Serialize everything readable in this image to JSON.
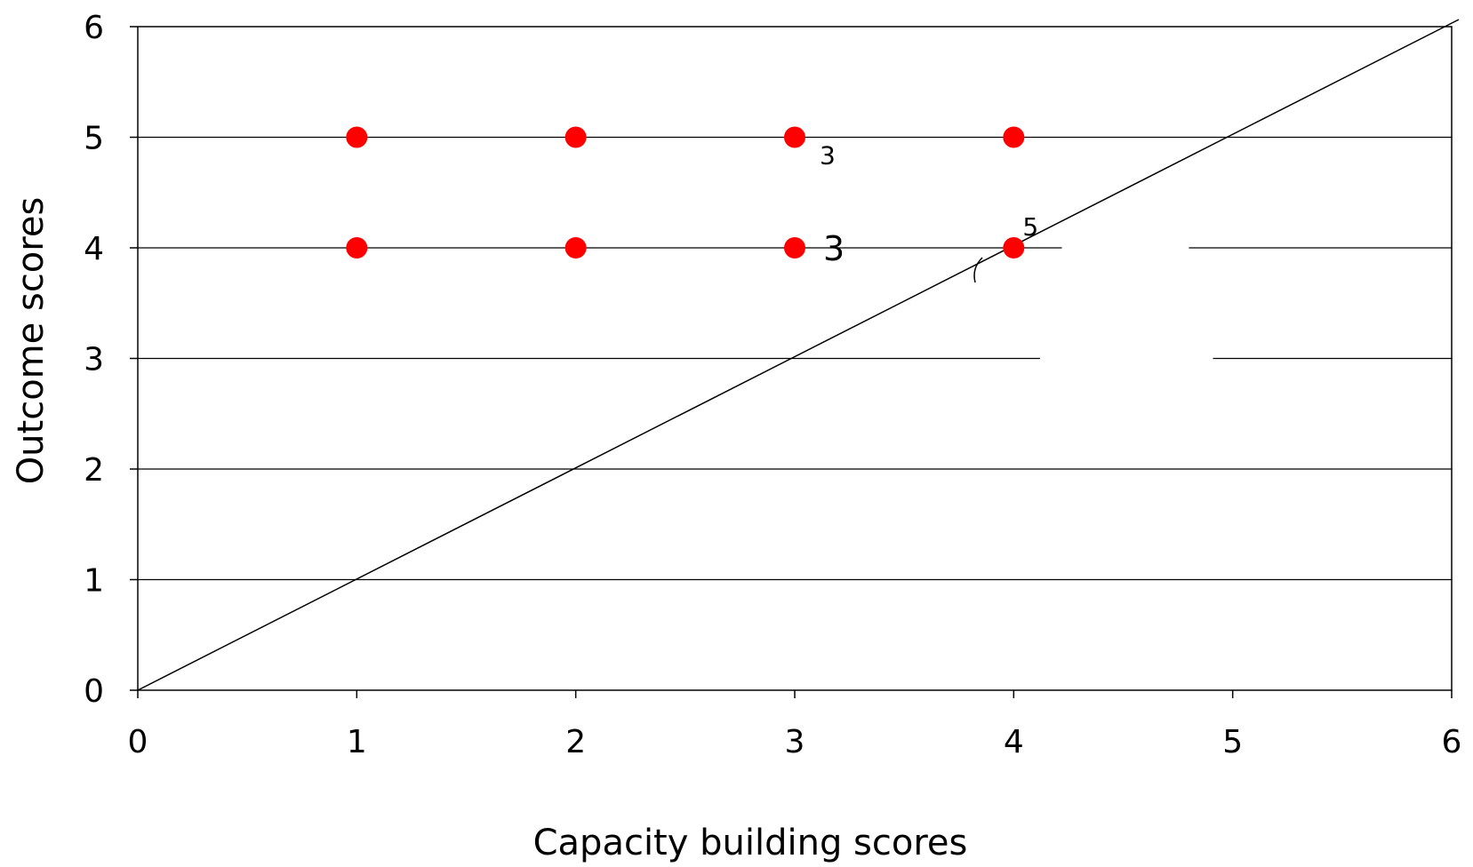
{
  "chart_data": {
    "type": "scatter",
    "title": "",
    "xlabel": "Capacity building scores",
    "ylabel": "Outcome scores",
    "xlim": [
      0,
      6
    ],
    "ylim": [
      0,
      6
    ],
    "xticks": [
      "0",
      "1",
      "2",
      "3",
      "4",
      "5",
      "6"
    ],
    "yticks": [
      "0",
      "1",
      "2",
      "3",
      "4",
      "5",
      "6"
    ],
    "grid": "horizontal",
    "legend": "none",
    "series": [
      {
        "points": [
          {
            "x": 1,
            "y": 5
          },
          {
            "x": 2,
            "y": 5
          },
          {
            "x": 3,
            "y": 5
          },
          {
            "x": 4,
            "y": 5
          },
          {
            "x": 1,
            "y": 4
          },
          {
            "x": 2,
            "y": 4
          },
          {
            "x": 3,
            "y": 4
          },
          {
            "x": 4,
            "y": 4
          }
        ],
        "color": "#ff0000"
      }
    ],
    "reference_line": {
      "from": [
        0,
        0
      ],
      "to": [
        6,
        6
      ],
      "color": "#000000"
    },
    "annotations": [
      {
        "text": "3",
        "x": 3,
        "y": 5,
        "size": "small"
      },
      {
        "text": "3",
        "x": 3,
        "y": 4,
        "size": "large"
      },
      {
        "text": "5",
        "x": 4,
        "y": 4,
        "size": "small"
      }
    ]
  }
}
